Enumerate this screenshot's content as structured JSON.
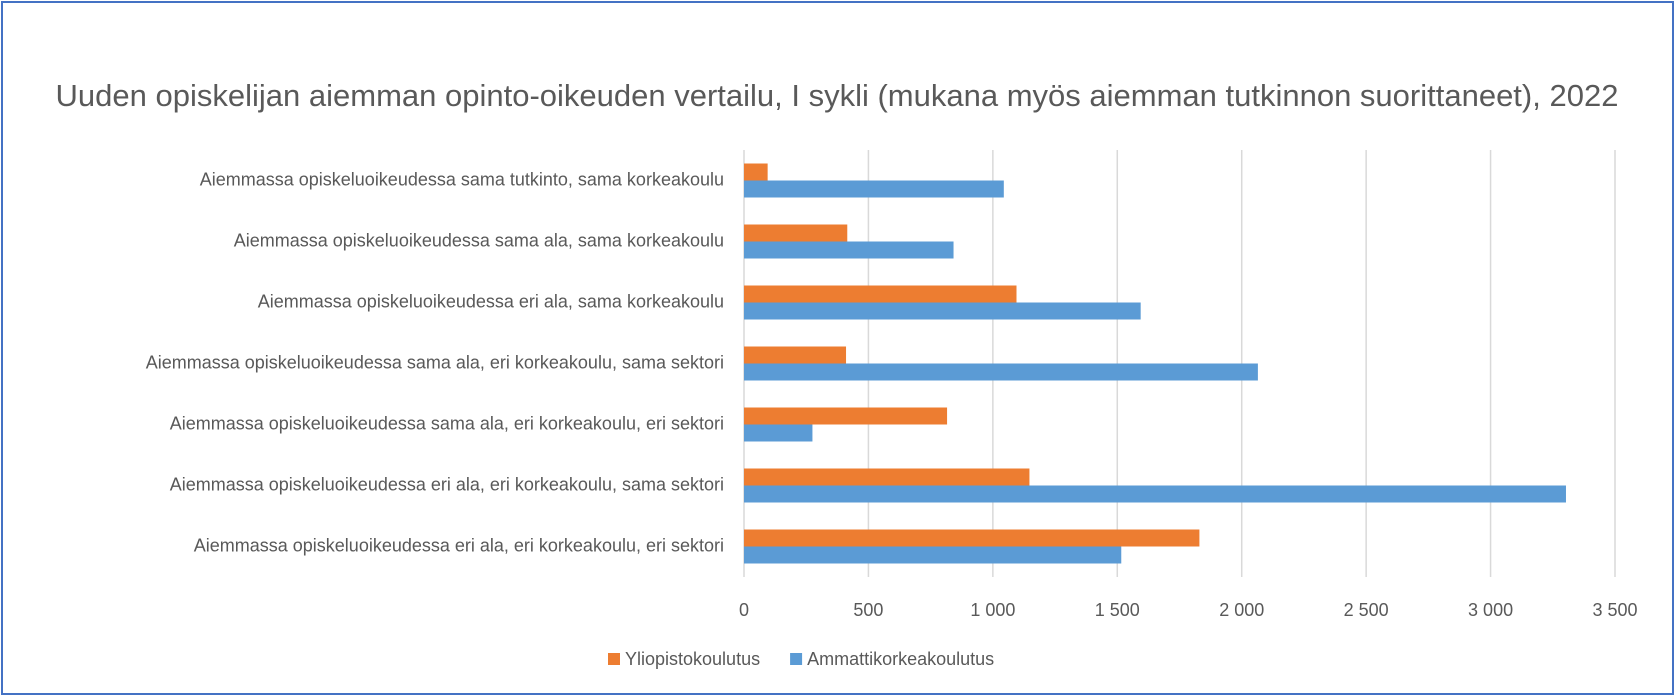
{
  "chart_data": {
    "type": "bar",
    "orientation": "horizontal",
    "title": "Uuden opiskelijan aiemman opinto-oikeuden vertailu, I sykli (mukana myös aiemman tutkinnon suorittaneet), 2022",
    "categories": [
      "Aiemmassa opiskeluoikeudessa sama tutkinto, sama korkeakoulu",
      "Aiemmassa opiskeluoikeudessa sama ala, sama korkeakoulu",
      "Aiemmassa opiskeluoikeudessa eri ala, sama korkeakoulu",
      "Aiemmassa opiskeluoikeudessa sama ala, eri korkeakoulu, sama sektori",
      "Aiemmassa opiskeluoikeudessa sama ala, eri korkeakoulu, eri sektori",
      "Aiemmassa opiskeluoikeudessa eri ala, eri korkeakoulu, sama sektori",
      "Aiemmassa opiskeluoikeudessa eri ala, eri korkeakoulu, eri sektori"
    ],
    "series": [
      {
        "name": "Yliopistokoulutus",
        "color": "#ed7d31",
        "values": [
          95,
          415,
          1095,
          410,
          816,
          1147,
          1830
        ]
      },
      {
        "name": "Ammattikorkeakoulutus",
        "color": "#5b9bd5",
        "values": [
          1044,
          842,
          1594,
          2065,
          275,
          3303,
          1516
        ]
      }
    ],
    "xlim": [
      0,
      3500
    ],
    "xticks": [
      0,
      500,
      {
        "value": 1000,
        "label": "1 000"
      },
      {
        "value": 1500,
        "label": "1 500"
      },
      {
        "value": 2000,
        "label": "2 000"
      },
      {
        "value": 2500,
        "label": "2 500"
      },
      {
        "value": 3000,
        "label": "3 000"
      },
      {
        "value": 3500,
        "label": "3 500"
      }
    ],
    "grid": true,
    "legend": "bottom"
  }
}
